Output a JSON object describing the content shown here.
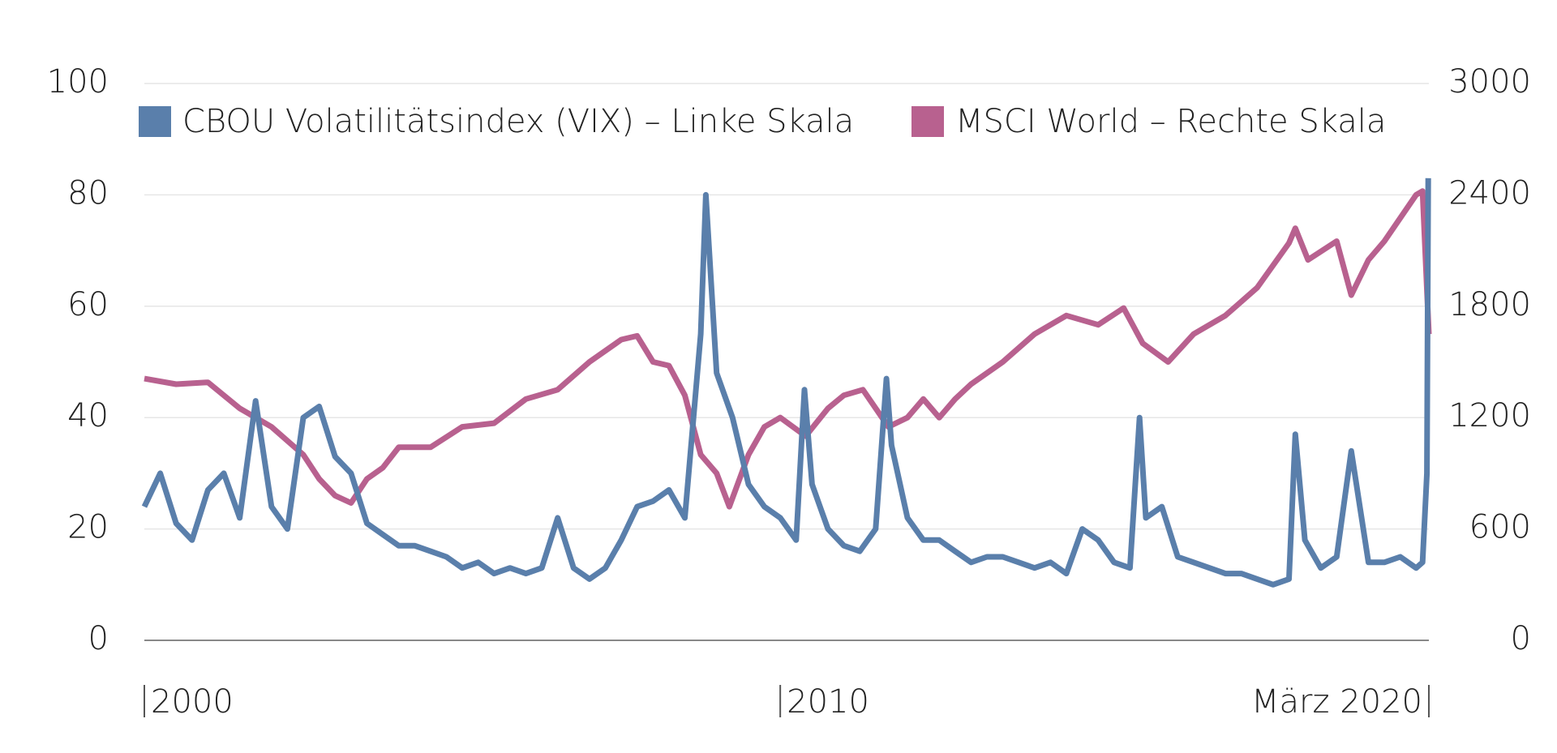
{
  "chart_data": {
    "type": "line",
    "legend": "top",
    "grid": true,
    "xlim": [
      2000,
      2020.2
    ],
    "xticks": [
      {
        "value": 2000,
        "label": "2000"
      },
      {
        "value": 2010,
        "label": "2010"
      },
      {
        "value": 2020.2,
        "label": "März 2020"
      }
    ],
    "ylim": [
      0,
      100
    ],
    "yticks": [
      0,
      20,
      40,
      60,
      80,
      100
    ],
    "y2lim": [
      0,
      3000
    ],
    "y2ticks": [
      0,
      600,
      1200,
      1800,
      2400,
      3000
    ],
    "series": [
      {
        "name": "CBOU Volatilitätsindex (VIX) – Linke Skala",
        "color": "#5a7fab",
        "axis": "y",
        "x": [
          2000,
          2000.25,
          2000.5,
          2000.75,
          2001,
          2001.25,
          2001.5,
          2001.75,
          2002,
          2002.25,
          2002.5,
          2002.75,
          2003,
          2003.25,
          2003.5,
          2003.75,
          2004,
          2004.25,
          2004.5,
          2004.75,
          2005,
          2005.25,
          2005.5,
          2005.75,
          2006,
          2006.25,
          2006.5,
          2006.75,
          2007,
          2007.25,
          2007.5,
          2007.75,
          2008,
          2008.25,
          2008.5,
          2008.75,
          2008.83,
          2009,
          2009.25,
          2009.5,
          2009.75,
          2010,
          2010.25,
          2010.38,
          2010.5,
          2010.75,
          2011,
          2011.25,
          2011.5,
          2011.67,
          2011.75,
          2012,
          2012.25,
          2012.5,
          2012.75,
          2013,
          2013.25,
          2013.5,
          2013.75,
          2014,
          2014.25,
          2014.5,
          2014.75,
          2015,
          2015.25,
          2015.5,
          2015.65,
          2015.75,
          2016,
          2016.25,
          2016.5,
          2016.75,
          2017,
          2017.25,
          2017.5,
          2017.75,
          2018,
          2018.1,
          2018.25,
          2018.5,
          2018.75,
          2018.98,
          2019.25,
          2019.5,
          2019.75,
          2020,
          2020.1,
          2020.17,
          2020.19
        ],
        "values": [
          24,
          30,
          21,
          18,
          27,
          30,
          22,
          43,
          24,
          20,
          40,
          42,
          33,
          30,
          21,
          19,
          17,
          17,
          16,
          15,
          13,
          14,
          12,
          13,
          12,
          13,
          22,
          13,
          11,
          13,
          18,
          24,
          25,
          27,
          22,
          55,
          80,
          48,
          40,
          28,
          24,
          22,
          18,
          45,
          28,
          20,
          17,
          16,
          20,
          47,
          35,
          22,
          18,
          18,
          16,
          14,
          15,
          15,
          14,
          13,
          14,
          12,
          20,
          18,
          14,
          13,
          40,
          22,
          24,
          15,
          14,
          13,
          12,
          12,
          11,
          10,
          11,
          37,
          18,
          13,
          15,
          34,
          14,
          14,
          15,
          13,
          14,
          30,
          83
        ]
      },
      {
        "name": "MSCI World – Rechte Skala",
        "color": "#b8618f",
        "axis": "y2",
        "x": [
          2000,
          2000.5,
          2001,
          2001.5,
          2002,
          2002.5,
          2002.75,
          2003,
          2003.25,
          2003.5,
          2003.75,
          2004,
          2004.5,
          2005,
          2005.5,
          2006,
          2006.5,
          2007,
          2007.5,
          2007.75,
          2008,
          2008.25,
          2008.5,
          2008.75,
          2009,
          2009.2,
          2009.5,
          2009.75,
          2010,
          2010.4,
          2010.75,
          2011,
          2011.3,
          2011.7,
          2012,
          2012.25,
          2012.5,
          2012.75,
          2013,
          2013.5,
          2014,
          2014.5,
          2015,
          2015.4,
          2015.7,
          2016.1,
          2016.5,
          2017,
          2017.5,
          2018,
          2018.1,
          2018.3,
          2018.75,
          2018.98,
          2019.25,
          2019.5,
          2020,
          2020.1,
          2020.2
        ],
        "values": [
          1410,
          1380,
          1390,
          1250,
          1150,
          1000,
          870,
          780,
          740,
          870,
          930,
          1040,
          1040,
          1150,
          1170,
          1300,
          1350,
          1500,
          1620,
          1640,
          1500,
          1480,
          1320,
          1000,
          900,
          720,
          1000,
          1150,
          1200,
          1100,
          1250,
          1320,
          1350,
          1150,
          1200,
          1300,
          1200,
          1300,
          1380,
          1500,
          1650,
          1750,
          1700,
          1790,
          1600,
          1500,
          1650,
          1750,
          1900,
          2140,
          2220,
          2050,
          2150,
          1860,
          2050,
          2150,
          2400,
          2420,
          1650
        ]
      }
    ]
  }
}
